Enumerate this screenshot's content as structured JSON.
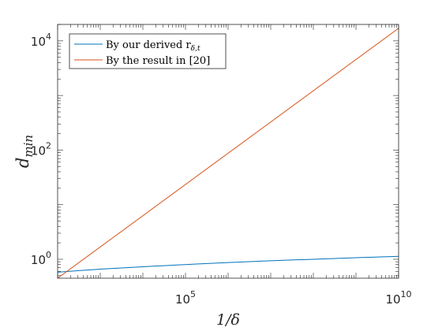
{
  "chart_data": {
    "type": "line",
    "xlabel": "1/δ",
    "ylabel": "d_min",
    "xscale": "log",
    "yscale": "log",
    "xlim": [
      100,
      10000000000
    ],
    "ylim": [
      0.45,
      20000
    ],
    "x_ticks": [
      {
        "base": "10",
        "exp": "5",
        "value": 100000
      },
      {
        "base": "10",
        "exp": "10",
        "value": 10000000000
      }
    ],
    "y_ticks": [
      {
        "base": "10",
        "exp": "0",
        "value": 1
      },
      {
        "base": "10",
        "exp": "2",
        "value": 100
      },
      {
        "base": "10",
        "exp": "4",
        "value": 10000
      }
    ],
    "grid": false,
    "box": true,
    "legend_position": "top-left",
    "series": [
      {
        "name": "By our derived r",
        "name_sub": "δ,t",
        "color": "#0072BD",
        "x": [
          100,
          1000,
          10000,
          100000,
          1000000,
          10000000,
          100000000,
          1000000000,
          10000000000
        ],
        "y": [
          0.58,
          0.66,
          0.73,
          0.8,
          0.87,
          0.94,
          1.0,
          1.07,
          1.13
        ]
      },
      {
        "name": "By the result in [20]",
        "name_sub": "",
        "color": "#D95319",
        "x": [
          100,
          10000000000
        ],
        "y": [
          0.45,
          17000
        ]
      }
    ]
  }
}
